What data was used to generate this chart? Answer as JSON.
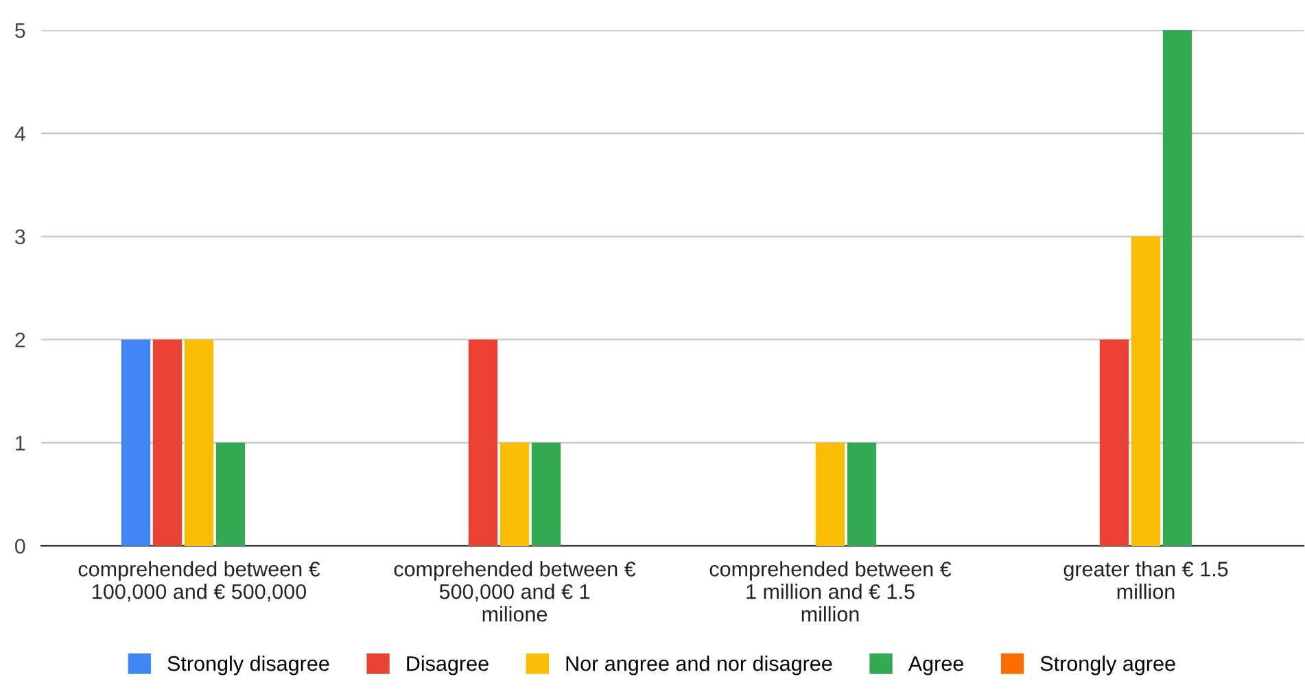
{
  "chart_data": {
    "type": "bar",
    "categories": [
      "comprehended between € 100,000 and € 500,000",
      "comprehended between € 500,000 and € 1 milione",
      "comprehended between € 1 million and € 1.5 million",
      "greater than € 1.5 million"
    ],
    "series": [
      {
        "name": "Strongly disagree",
        "color": "#4285f4",
        "values": [
          2,
          0,
          0,
          0
        ]
      },
      {
        "name": "Disagree",
        "color": "#ea4335",
        "values": [
          2,
          2,
          0,
          2
        ]
      },
      {
        "name": "Nor angree and nor disagree",
        "color": "#fbbc04",
        "values": [
          2,
          1,
          1,
          3
        ]
      },
      {
        "name": "Agree",
        "color": "#34a853",
        "values": [
          1,
          1,
          1,
          5
        ]
      },
      {
        "name": "Strongly agree",
        "color": "#ff6d01",
        "values": [
          0,
          0,
          0,
          0
        ]
      }
    ],
    "ylim": [
      0,
      5
    ],
    "yticks": [
      0,
      1,
      2,
      3,
      4,
      5
    ],
    "grid": "y",
    "legend": "bottom"
  }
}
